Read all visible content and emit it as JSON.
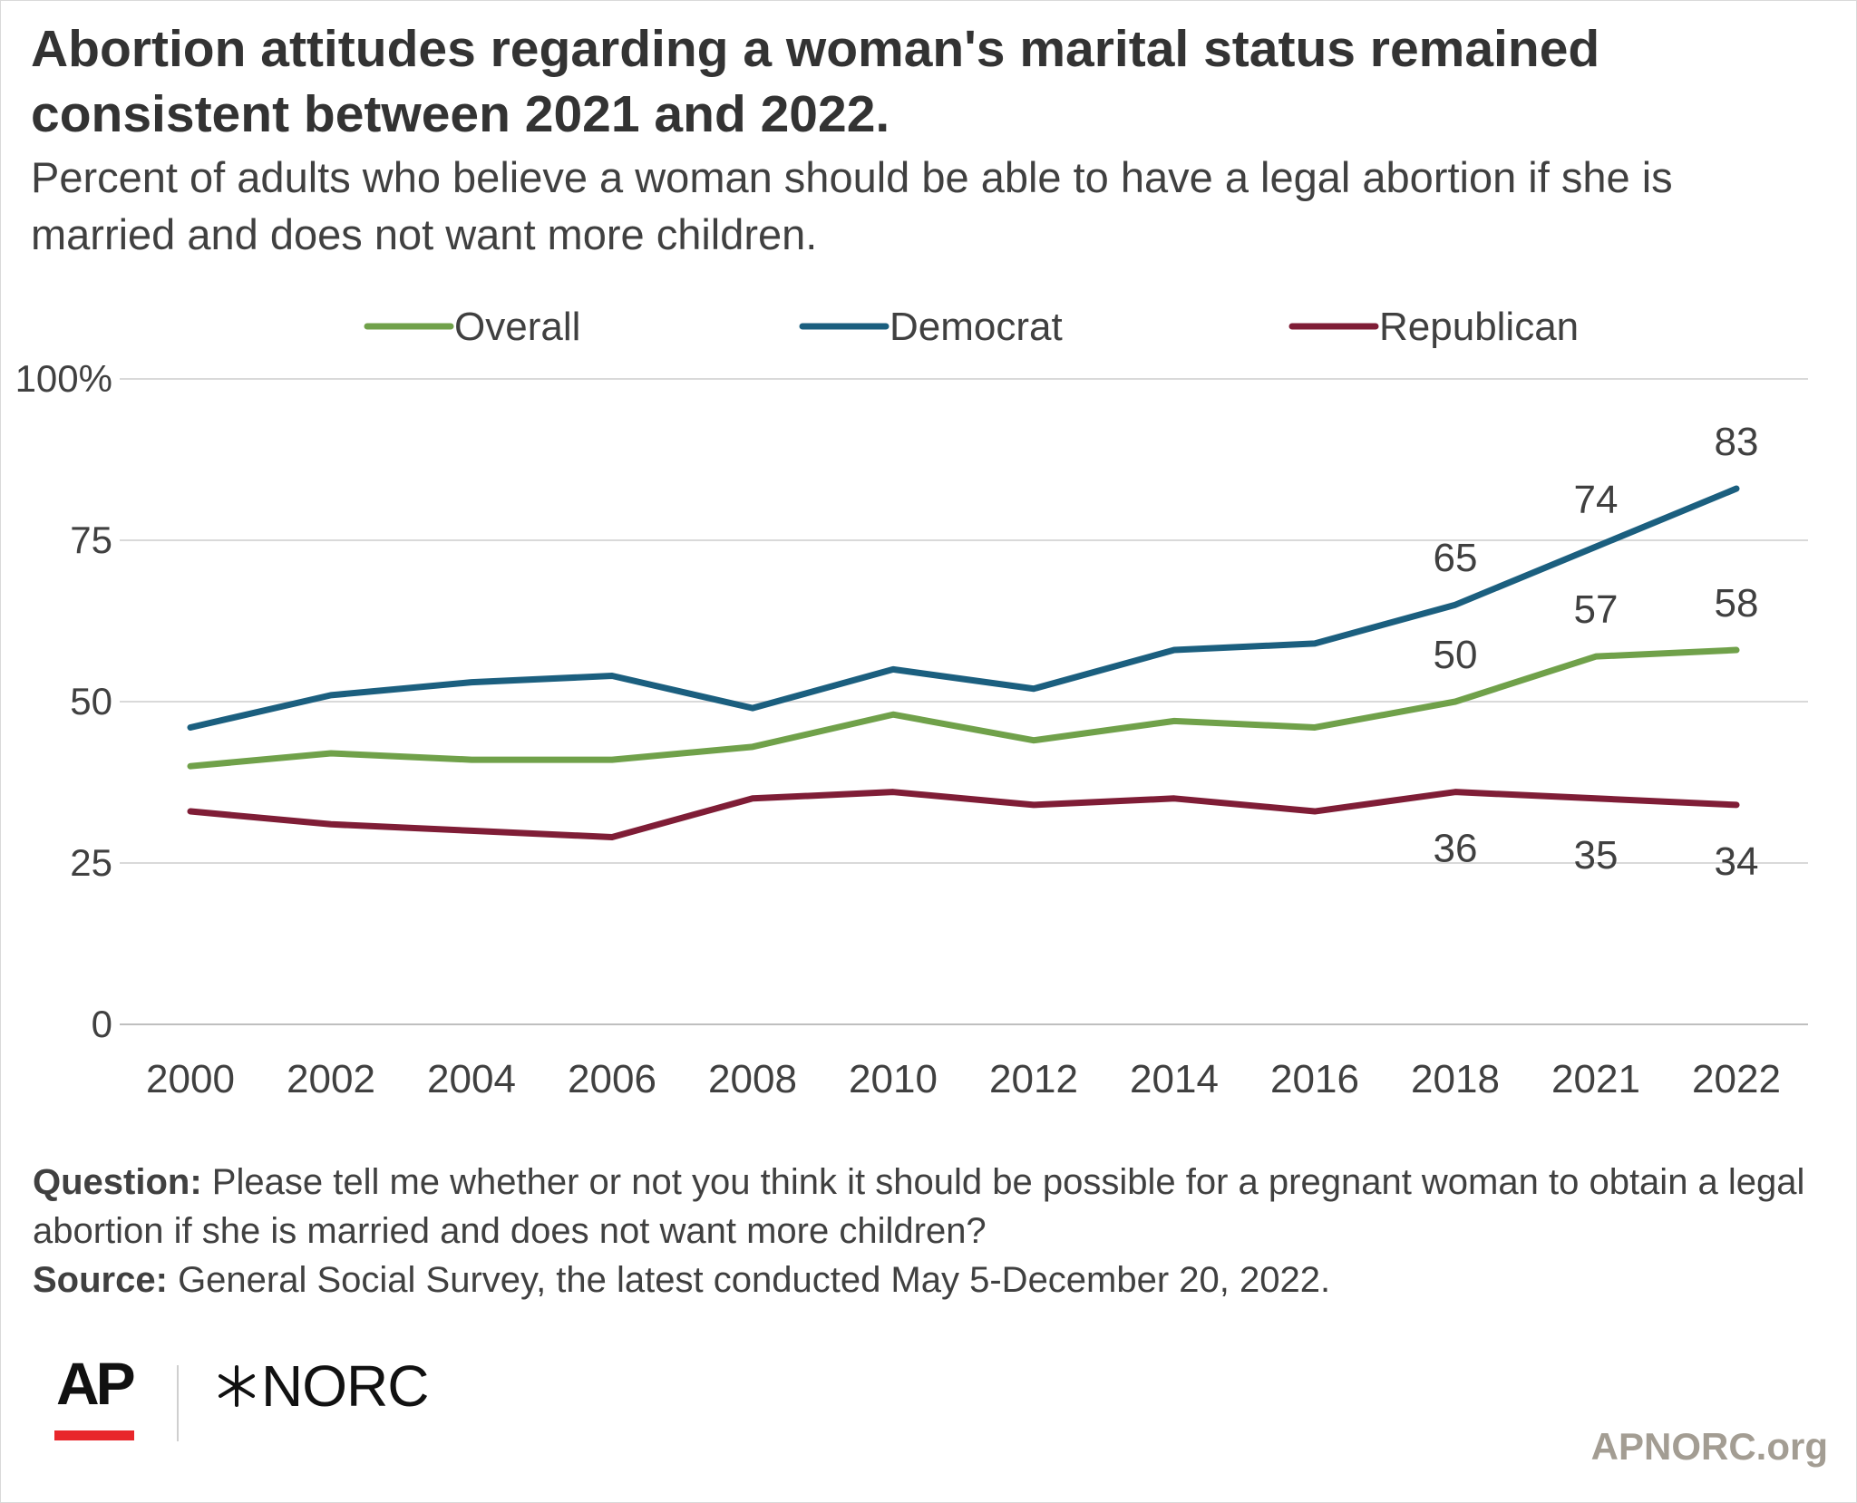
{
  "header": {
    "title": "Abortion attitudes regarding a woman's marital status remained consistent between 2021 and 2022.",
    "subtitle": "Percent of adults who believe a woman should be able to have a legal abortion if she is married and does not want more children."
  },
  "footer": {
    "question_label": "Question:",
    "question_text": "Please tell me whether or not you think it should be possible for a pregnant woman to obtain a legal abortion if she is married and does not want more children?",
    "source_label": "Source:",
    "source_text": "General Social Survey, the latest conducted May 5-December 20, 2022.",
    "ap_logo": "AP",
    "norc_logo": "NORC",
    "website": "APNORC.org"
  },
  "colors": {
    "overall": "#70a14a",
    "democrat": "#1b5f7f",
    "republican": "#7f1d36",
    "gridline": "#d9d9d9",
    "text": "#404040"
  },
  "chart_data": {
    "type": "line",
    "categories": [
      "2000",
      "2002",
      "2004",
      "2006",
      "2008",
      "2010",
      "2012",
      "2014",
      "2016",
      "2018",
      "2021",
      "2022"
    ],
    "series": [
      {
        "name": "Overall",
        "key": "overall",
        "values": [
          40,
          42,
          41,
          41,
          43,
          48,
          44,
          47,
          46,
          50,
          57,
          58
        ]
      },
      {
        "name": "Democrat",
        "key": "democrat",
        "values": [
          46,
          51,
          53,
          54,
          49,
          55,
          52,
          58,
          59,
          65,
          74,
          83
        ]
      },
      {
        "name": "Republican",
        "key": "republican",
        "values": [
          33,
          31,
          30,
          29,
          35,
          36,
          34,
          35,
          33,
          36,
          35,
          34
        ]
      }
    ],
    "data_labels": {
      "overall": [
        null,
        null,
        null,
        null,
        null,
        null,
        null,
        null,
        null,
        "50",
        "57",
        "58"
      ],
      "democrat": [
        null,
        null,
        null,
        null,
        null,
        null,
        null,
        null,
        null,
        "65",
        "74",
        "83"
      ],
      "republican": [
        null,
        null,
        null,
        null,
        null,
        null,
        null,
        null,
        null,
        "36",
        "35",
        "34"
      ]
    },
    "y_ticks": [
      "0",
      "25",
      "50",
      "75",
      "100%"
    ],
    "y_tick_values": [
      0,
      25,
      50,
      75,
      100
    ],
    "ylim": [
      0,
      100
    ],
    "grid": true,
    "legend_position": "top-center"
  }
}
